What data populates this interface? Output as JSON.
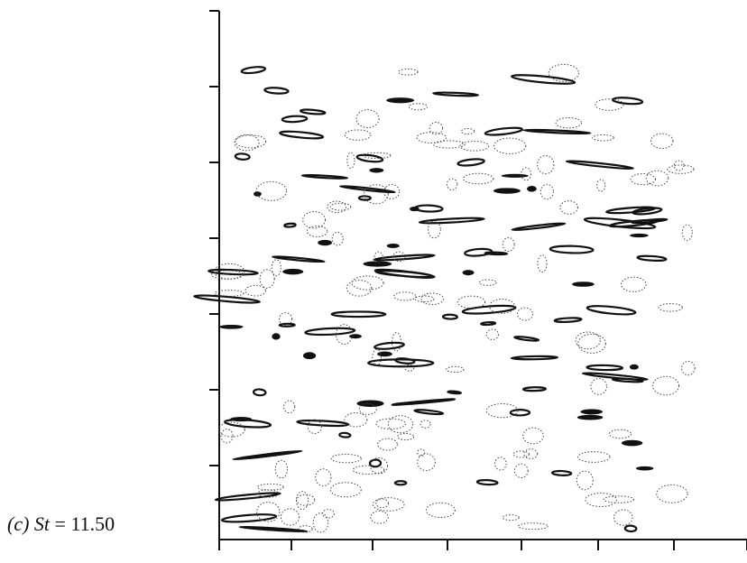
{
  "figure": {
    "label": "(c)",
    "symbol": "St",
    "relation": "=",
    "value": "11.50"
  }
}
